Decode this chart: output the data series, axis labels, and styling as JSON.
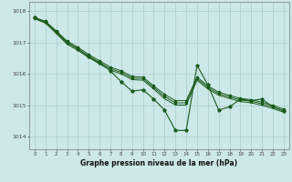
{
  "bg_color": "#cce8e8",
  "grid_color": "#aacccc",
  "line_color": "#1a5c1a",
  "title": "Graphe pression niveau de la mer (hPa)",
  "ylabel_ticks": [
    1014,
    1015,
    1016,
    1017,
    1018
  ],
  "xlim": [
    -0.5,
    23.5
  ],
  "ylim": [
    1013.6,
    1018.3
  ],
  "hours": [
    0,
    1,
    2,
    3,
    4,
    5,
    6,
    7,
    8,
    9,
    10,
    11,
    12,
    13,
    14,
    15,
    16,
    17,
    18,
    19,
    20,
    21,
    22,
    23
  ],
  "trend_top": [
    1017.8,
    1017.68,
    1017.37,
    1017.05,
    1016.85,
    1016.62,
    1016.42,
    1016.22,
    1016.1,
    1015.92,
    1015.9,
    1015.62,
    1015.35,
    1015.15,
    1015.15,
    1015.9,
    1015.62,
    1015.42,
    1015.32,
    1015.22,
    1015.18,
    1015.1,
    1015.0,
    1014.88
  ],
  "trend_mid": [
    1017.78,
    1017.65,
    1017.33,
    1017.0,
    1016.8,
    1016.57,
    1016.37,
    1016.17,
    1016.05,
    1015.87,
    1015.85,
    1015.57,
    1015.28,
    1015.08,
    1015.08,
    1015.85,
    1015.57,
    1015.37,
    1015.27,
    1015.17,
    1015.13,
    1015.05,
    1014.95,
    1014.83
  ],
  "trend_bot": [
    1017.76,
    1017.62,
    1017.29,
    1016.95,
    1016.75,
    1016.52,
    1016.32,
    1016.12,
    1016.0,
    1015.82,
    1015.8,
    1015.52,
    1015.21,
    1015.01,
    1015.01,
    1015.8,
    1015.52,
    1015.32,
    1015.22,
    1015.12,
    1015.08,
    1015.0,
    1014.9,
    1014.78
  ],
  "main_line": [
    1017.8,
    1017.65,
    1017.35,
    1017.0,
    1016.8,
    1016.55,
    1016.35,
    1016.1,
    1015.75,
    1015.45,
    1015.5,
    1015.2,
    1014.85,
    1014.2,
    1014.2,
    1016.28,
    1015.65,
    1014.85,
    1014.95,
    1015.2,
    1015.15,
    1015.2,
    1014.95,
    1014.82
  ]
}
